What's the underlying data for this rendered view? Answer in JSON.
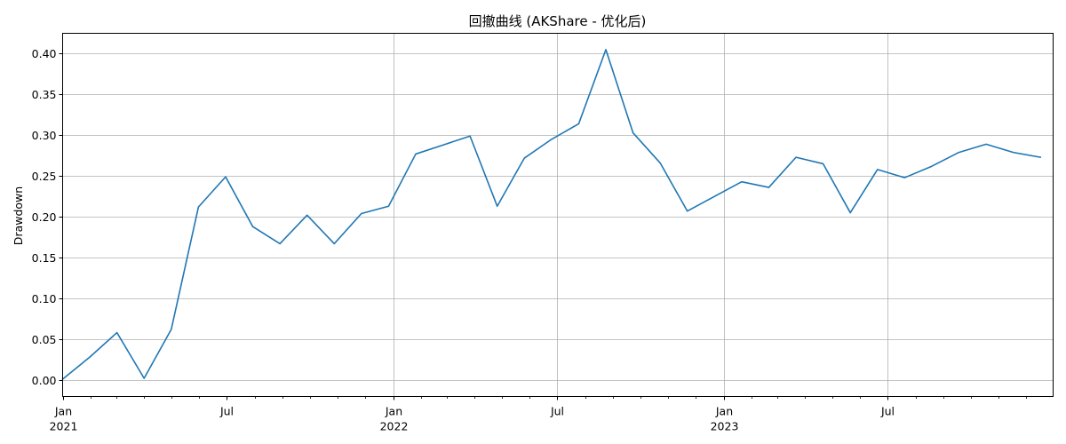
{
  "chart_data": {
    "type": "line",
    "title": "回撤曲线 (AKShare - 优化后)",
    "xlabel": "",
    "ylabel": "Drawdown",
    "grid": true,
    "legend": "none",
    "line_color": "#1f77b4",
    "x_range": [
      "2021-01-01",
      "2023-12-31"
    ],
    "ylim": [
      -0.0203,
      0.425
    ],
    "y_ticks": [
      0.0,
      0.05,
      0.1,
      0.15,
      0.2,
      0.25,
      0.3,
      0.35,
      0.4
    ],
    "y_tick_labels": [
      "0.00",
      "0.05",
      "0.10",
      "0.15",
      "0.20",
      "0.25",
      "0.30",
      "0.35",
      "0.40"
    ],
    "x_ticks": [
      {
        "date": "2021-01-01",
        "label": "Jan",
        "sublabel": "2021",
        "gridline": false
      },
      {
        "date": "2021-07-01",
        "label": "Jul",
        "sublabel": "",
        "gridline": false
      },
      {
        "date": "2022-01-01",
        "label": "Jan",
        "sublabel": "2022",
        "gridline": true
      },
      {
        "date": "2022-07-01",
        "label": "Jul",
        "sublabel": "",
        "gridline": true
      },
      {
        "date": "2023-01-01",
        "label": "Jan",
        "sublabel": "2023",
        "gridline": true
      },
      {
        "date": "2023-07-01",
        "label": "Jul",
        "sublabel": "",
        "gridline": true
      }
    ],
    "minor_ticks": [
      "2021-02-01",
      "2021-03-01",
      "2021-04-01",
      "2021-05-01",
      "2021-06-01",
      "2021-08-01",
      "2021-09-01",
      "2021-10-01",
      "2021-11-01",
      "2021-12-01",
      "2022-02-01",
      "2022-03-01",
      "2022-04-01",
      "2022-05-01",
      "2022-06-01",
      "2022-08-01",
      "2022-09-01",
      "2022-10-01",
      "2022-11-01",
      "2022-12-01",
      "2023-02-01",
      "2023-03-01",
      "2023-04-01",
      "2023-05-01",
      "2023-06-01",
      "2023-08-01",
      "2023-09-01",
      "2023-10-01",
      "2023-11-01",
      "2023-12-01"
    ],
    "series": [
      {
        "x": [
          "2021-01-01",
          "2021-01-31",
          "2021-03-02",
          "2021-04-01",
          "2021-05-01",
          "2021-05-31",
          "2021-06-30",
          "2021-07-30",
          "2021-08-29",
          "2021-09-28",
          "2021-10-28",
          "2021-11-27",
          "2021-12-27",
          "2022-01-26",
          "2022-02-25",
          "2022-03-27",
          "2022-04-26",
          "2022-05-26",
          "2022-06-25",
          "2022-07-25",
          "2022-08-24",
          "2022-09-23",
          "2022-10-23",
          "2022-11-22",
          "2022-12-22",
          "2023-01-21",
          "2023-02-20",
          "2023-03-22",
          "2023-04-21",
          "2023-05-21",
          "2023-06-20",
          "2023-07-20",
          "2023-08-19",
          "2023-09-18",
          "2023-10-18",
          "2023-11-17",
          "2023-12-17"
        ],
        "values": [
          0.001,
          0.028,
          0.058,
          0.002,
          0.062,
          0.212,
          0.249,
          0.188,
          0.167,
          0.202,
          0.167,
          0.204,
          0.213,
          0.277,
          0.288,
          0.299,
          0.213,
          0.272,
          0.295,
          0.314,
          0.405,
          0.303,
          0.266,
          0.207,
          0.225,
          0.243,
          0.236,
          0.273,
          0.265,
          0.205,
          0.258,
          0.248,
          0.262,
          0.279,
          0.289,
          0.279,
          0.273
        ]
      }
    ]
  }
}
